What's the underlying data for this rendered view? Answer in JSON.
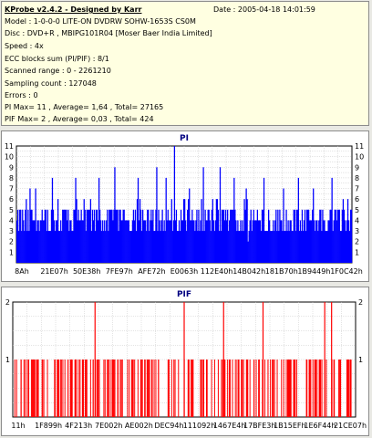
{
  "info": {
    "title": "KProbe v2.4.2 - Designed by Karr",
    "date": "Date : 2005-04-18 14:01:59",
    "lines": [
      "Model : 1-0-0-0 LITE-ON DVDRW SOHW-1653S CS0M",
      "Disc : DVD+R , MBIPG101R04 [Moser Baer India Limited]",
      "Speed : 4x",
      "ECC blocks sum (PI/PIF) : 8/1",
      "Scanned range : 0 - 2261210",
      "Sampling count : 127048",
      "Errors : 0",
      "PI Max= 11 , Average= 1,64 , Total= 27165",
      "PIF Max= 2 , Average= 0,03 , Total= 424"
    ]
  },
  "chart_data": [
    {
      "type": "bar",
      "title": "PI",
      "ylim": [
        0,
        11
      ],
      "yticks": [
        "1",
        "2",
        "3",
        "4",
        "5",
        "6",
        "7",
        "8",
        "9",
        "10",
        "11"
      ],
      "xticks": [
        "8Ah",
        "21E07h",
        "50E38h",
        "7FE97h",
        "AFE72h",
        "E0063h",
        "112E40h",
        "14B042h",
        "181B70h",
        "1B9449h",
        "1F0C42h"
      ],
      "grid": true,
      "color": "#0000ff",
      "samples": 360,
      "baseline_low": 3,
      "baseline_high": 5,
      "peaks": [
        [
          14,
          7
        ],
        [
          20,
          7
        ],
        [
          38,
          8
        ],
        [
          63,
          8
        ],
        [
          88,
          8
        ],
        [
          105,
          9
        ],
        [
          130,
          8
        ],
        [
          150,
          9
        ],
        [
          160,
          8
        ],
        [
          169,
          11
        ],
        [
          185,
          7
        ],
        [
          200,
          9
        ],
        [
          218,
          9
        ],
        [
          233,
          8
        ],
        [
          246,
          7
        ],
        [
          265,
          8
        ],
        [
          286,
          7
        ],
        [
          302,
          8
        ],
        [
          318,
          7
        ],
        [
          338,
          8
        ],
        [
          350,
          6
        ],
        [
          355,
          6
        ]
      ]
    },
    {
      "type": "bar",
      "title": "PIF",
      "ylim": [
        0,
        2
      ],
      "yticks": [
        "1",
        "2"
      ],
      "xticks": [
        "11h",
        "1F899h",
        "4F213h",
        "7E002h",
        "AE002h",
        "DEC94h",
        "111092h",
        "1467E4h",
        "17BFE3h",
        "1B15EFh",
        "1E6F44h",
        "21CE07h"
      ],
      "grid": true,
      "color": "#ff0000",
      "max_positions": [
        0.24,
        0.5,
        0.615,
        0.73,
        0.91,
        0.93
      ]
    }
  ]
}
